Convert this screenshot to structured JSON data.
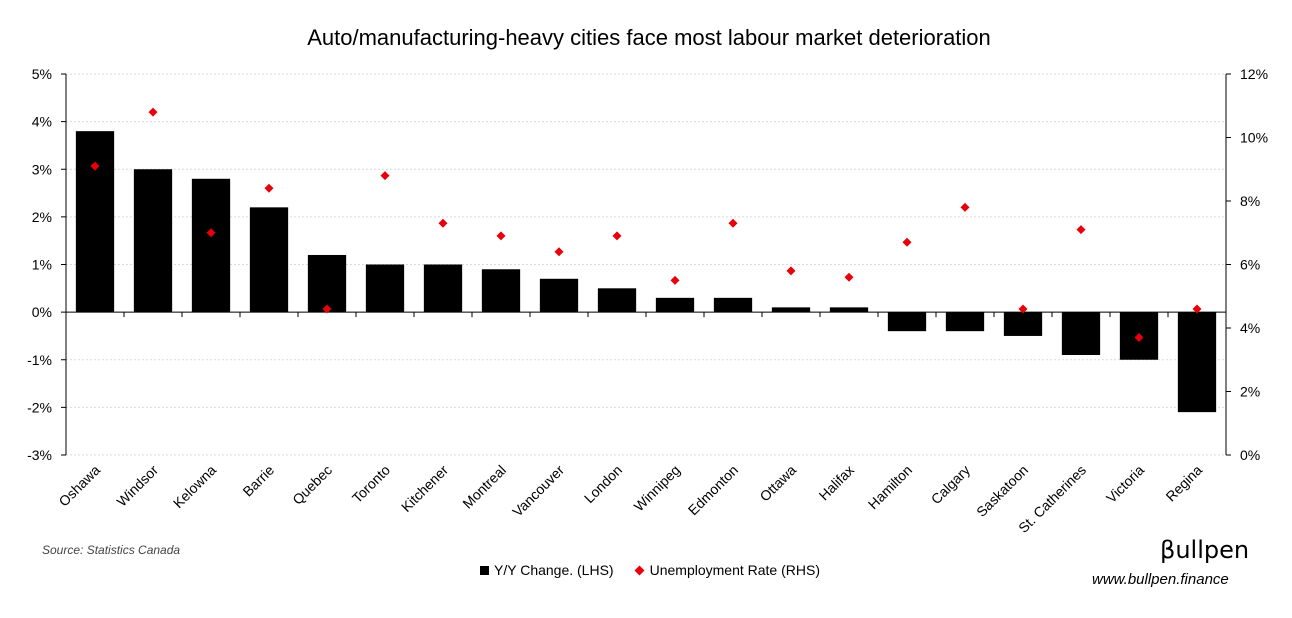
{
  "chart_data": {
    "type": "bar+scatter",
    "title": "Auto/manufacturing-heavy cities face most labour market deterioration",
    "categories": [
      "Oshawa",
      "Windsor",
      "Kelowna",
      "Barrie",
      "Quebec",
      "Toronto",
      "Kitchener",
      "Montreal",
      "Vancouver",
      "London",
      "Winnipeg",
      "Edmonton",
      "Ottawa",
      "Halifax",
      "Hamilton",
      "Calgary",
      "Saskatoon",
      "St. Catherines",
      "Victoria",
      "Regina"
    ],
    "series": [
      {
        "name": "Y/Y Change. (LHS)",
        "type": "bar",
        "axis": "left",
        "color": "#000000",
        "values": [
          3.8,
          3.0,
          2.8,
          2.2,
          1.2,
          1.0,
          1.0,
          0.9,
          0.7,
          0.5,
          0.3,
          0.3,
          0.1,
          0.1,
          -0.4,
          -0.4,
          -0.5,
          -0.9,
          -1.0,
          -2.1
        ]
      },
      {
        "name": "Unemployment Rate (RHS)",
        "type": "scatter",
        "axis": "right",
        "color": "#e8000b",
        "marker": "diamond",
        "values": [
          9.1,
          10.8,
          7.0,
          8.4,
          4.6,
          8.8,
          7.3,
          6.9,
          6.4,
          6.9,
          5.5,
          7.3,
          5.8,
          5.6,
          6.7,
          7.8,
          4.6,
          7.1,
          3.7,
          4.6
        ]
      }
    ],
    "left_axis": {
      "ylim": [
        -3,
        5
      ],
      "ticks": [
        5,
        4,
        3,
        2,
        1,
        0,
        -1,
        -2,
        -3
      ],
      "tick_labels": [
        "5%",
        "4%",
        "3%",
        "2%",
        "1%",
        "0%",
        "-1%",
        "-2%",
        "-3%"
      ]
    },
    "right_axis": {
      "ylim": [
        0,
        12
      ],
      "ticks": [
        12,
        10,
        8,
        6,
        4,
        2,
        0
      ],
      "tick_labels": [
        "12%",
        "10%",
        "8%",
        "6%",
        "4%",
        "2%",
        "0%"
      ]
    },
    "grid": true,
    "legend_position": "bottom"
  },
  "footer": {
    "source": "Source: Statistics Canada",
    "brand": "βullpen",
    "website": "www.bullpen.finance"
  },
  "colors": {
    "bar": "#000000",
    "marker": "#e8000b",
    "grid": "#d9d9d9"
  }
}
